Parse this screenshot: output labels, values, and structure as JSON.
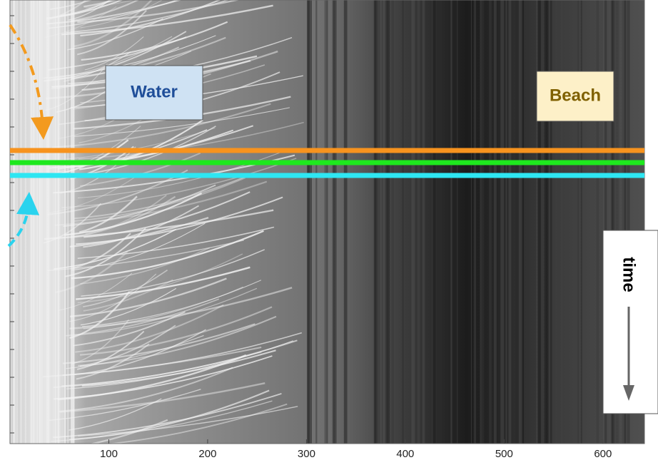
{
  "chart_data": {
    "type": "image",
    "xlim": [
      0,
      642
    ],
    "xticks": [
      100,
      200,
      300,
      400,
      500,
      600
    ],
    "annotations": [
      "Water",
      "Beach",
      "time"
    ]
  }
}
